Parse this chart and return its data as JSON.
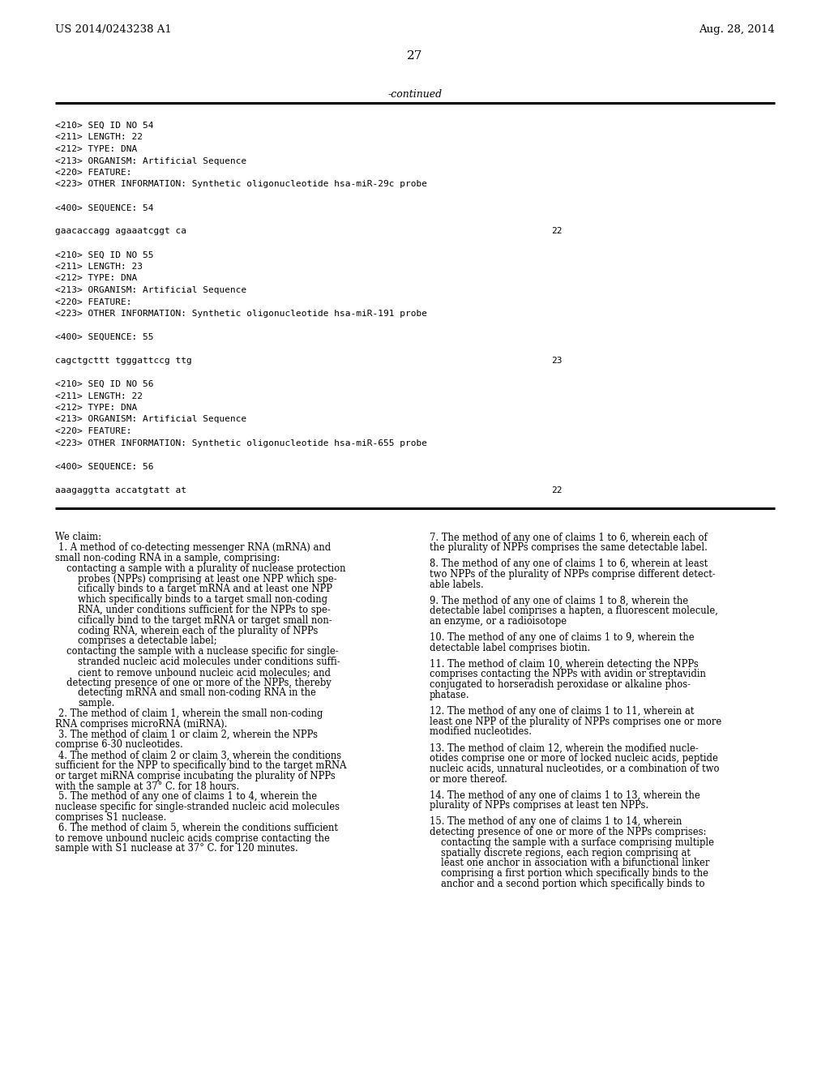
{
  "header_left": "US 2014/0243238 A1",
  "header_right": "Aug. 28, 2014",
  "page_number": "27",
  "continued_label": "-continued",
  "background_color": "#ffffff",
  "seq_blocks": [
    {
      "seq_id": "54",
      "length": "22",
      "type": "DNA",
      "organism": "Artificial Sequence",
      "other_info": "Synthetic oligonucleotide hsa-miR-29c probe",
      "seq_num": "54",
      "sequence": "gaacaccagg agaaatcggt ca",
      "seq_length_num": "22"
    },
    {
      "seq_id": "55",
      "length": "23",
      "type": "DNA",
      "organism": "Artificial Sequence",
      "other_info": "Synthetic oligonucleotide hsa-miR-191 probe",
      "seq_num": "55",
      "sequence": "cagctgcttt tgggattccg ttg",
      "seq_length_num": "23"
    },
    {
      "seq_id": "56",
      "length": "22",
      "type": "DNA",
      "organism": "Artificial Sequence",
      "other_info": "Synthetic oligonucleotide hsa-miR-655 probe",
      "seq_num": "56",
      "sequence": "aaagaggtta accatgtatt at",
      "seq_length_num": "22"
    }
  ],
  "left_claim_lines": [
    [
      0,
      "We claim:"
    ],
    [
      4,
      "1. A method of co-detecting messenger RNA (mRNA) and"
    ],
    [
      0,
      "small non-coding RNA in a sample, comprising:"
    ],
    [
      14,
      "contacting a sample with a plurality of nuclease protection"
    ],
    [
      28,
      "probes (NPPs) comprising at least one NPP which spe-"
    ],
    [
      28,
      "cifically binds to a target mRNA and at least one NPP"
    ],
    [
      28,
      "which specifically binds to a target small non-coding"
    ],
    [
      28,
      "RNA, under conditions sufficient for the NPPs to spe-"
    ],
    [
      28,
      "cifically bind to the target mRNA or target small non-"
    ],
    [
      28,
      "coding RNA, wherein each of the plurality of NPPs"
    ],
    [
      28,
      "comprises a detectable label;"
    ],
    [
      14,
      "contacting the sample with a nuclease specific for single-"
    ],
    [
      28,
      "stranded nucleic acid molecules under conditions suffi-"
    ],
    [
      28,
      "cient to remove unbound nucleic acid molecules; and"
    ],
    [
      14,
      "detecting presence of one or more of the NPPs, thereby"
    ],
    [
      28,
      "detecting mRNA and small non-coding RNA in the"
    ],
    [
      28,
      "sample."
    ],
    [
      4,
      "2. The method of claim 1, wherein the small non-coding"
    ],
    [
      0,
      "RNA comprises microRNA (miRNA)."
    ],
    [
      4,
      "3. The method of claim 1 or claim 2, wherein the NPPs"
    ],
    [
      0,
      "comprise 6-30 nucleotides."
    ],
    [
      4,
      "4. The method of claim 2 or claim 3, wherein the conditions"
    ],
    [
      0,
      "sufficient for the NPP to specifically bind to the target mRNA"
    ],
    [
      0,
      "or target miRNA comprise incubating the plurality of NPPs"
    ],
    [
      0,
      "with the sample at 37° C. for 18 hours."
    ],
    [
      4,
      "5. The method of any one of claims 1 to 4, wherein the"
    ],
    [
      0,
      "nuclease specific for single-stranded nucleic acid molecules"
    ],
    [
      0,
      "comprises S1 nuclease."
    ],
    [
      4,
      "6. The method of claim 5, wherein the conditions sufficient"
    ],
    [
      0,
      "to remove unbound nucleic acids comprise contacting the"
    ],
    [
      0,
      "sample with S1 nuclease at 37° C. for 120 minutes."
    ]
  ],
  "right_claim_lines": [
    [
      0,
      "7. The method of any one of claims 1 to 6, wherein each of"
    ],
    [
      0,
      "the plurality of NPPs comprises the same detectable label."
    ],
    [
      -1,
      ""
    ],
    [
      0,
      "8. The method of any one of claims 1 to 6, wherein at least"
    ],
    [
      0,
      "two NPPs of the plurality of NPPs comprise different detect-"
    ],
    [
      0,
      "able labels."
    ],
    [
      -1,
      ""
    ],
    [
      0,
      "9. The method of any one of claims 1 to 8, wherein the"
    ],
    [
      0,
      "detectable label comprises a hapten, a fluorescent molecule,"
    ],
    [
      0,
      "an enzyme, or a radioisotope"
    ],
    [
      -1,
      ""
    ],
    [
      0,
      "10. The method of any one of claims 1 to 9, wherein the"
    ],
    [
      0,
      "detectable label comprises biotin."
    ],
    [
      -1,
      ""
    ],
    [
      0,
      "11. The method of claim 10, wherein detecting the NPPs"
    ],
    [
      0,
      "comprises contacting the NPPs with avidin or streptavidin"
    ],
    [
      0,
      "conjugated to horseradish peroxidase or alkaline phos-"
    ],
    [
      0,
      "phatase."
    ],
    [
      -1,
      ""
    ],
    [
      0,
      "12. The method of any one of claims 1 to 11, wherein at"
    ],
    [
      0,
      "least one NPP of the plurality of NPPs comprises one or more"
    ],
    [
      0,
      "modified nucleotides."
    ],
    [
      -1,
      ""
    ],
    [
      0,
      "13. The method of claim 12, wherein the modified nucle-"
    ],
    [
      0,
      "otides comprise one or more of locked nucleic acids, peptide"
    ],
    [
      0,
      "nucleic acids, unnatural nucleotides, or a combination of two"
    ],
    [
      0,
      "or more thereof."
    ],
    [
      -1,
      ""
    ],
    [
      0,
      "14. The method of any one of claims 1 to 13, wherein the"
    ],
    [
      0,
      "plurality of NPPs comprises at least ten NPPs."
    ],
    [
      -1,
      ""
    ],
    [
      0,
      "15. The method of any one of claims 1 to 14, wherein"
    ],
    [
      0,
      "detecting presence of one or more of the NPPs comprises:"
    ],
    [
      14,
      "contacting the sample with a surface comprising multiple"
    ],
    [
      14,
      "spatially discrete regions, each region comprising at"
    ],
    [
      14,
      "least one anchor in association with a bifunctional linker"
    ],
    [
      14,
      "comprising a first portion which specifically binds to the"
    ],
    [
      14,
      "anchor and a second portion which specifically binds to"
    ]
  ]
}
